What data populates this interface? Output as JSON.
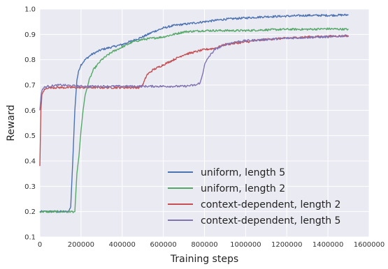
{
  "chart_data": {
    "type": "line",
    "title": "",
    "xlabel": "Training steps",
    "ylabel": "Reward",
    "xlim": [
      0,
      1600000
    ],
    "ylim": [
      0.1,
      1.0
    ],
    "xticks": [
      0,
      200000,
      400000,
      600000,
      800000,
      1000000,
      1200000,
      1400000,
      1600000
    ],
    "yticks": [
      0.1,
      0.2,
      0.3,
      0.4,
      0.5,
      0.6,
      0.7,
      0.8,
      0.9,
      1.0
    ],
    "grid": true,
    "legend_position": "bottom-right",
    "colors": {
      "plot_background": "#EAEAF2",
      "grid": "#ffffff"
    },
    "series": [
      {
        "name": "uniform, length 5",
        "color": "#4C72B0",
        "points": [
          [
            0,
            0.2
          ],
          [
            50000,
            0.2
          ],
          [
            100000,
            0.2
          ],
          [
            140000,
            0.2
          ],
          [
            150000,
            0.22
          ],
          [
            160000,
            0.4
          ],
          [
            170000,
            0.6
          ],
          [
            180000,
            0.72
          ],
          [
            190000,
            0.76
          ],
          [
            200000,
            0.78
          ],
          [
            220000,
            0.8
          ],
          [
            250000,
            0.82
          ],
          [
            300000,
            0.84
          ],
          [
            350000,
            0.85
          ],
          [
            400000,
            0.86
          ],
          [
            450000,
            0.875
          ],
          [
            500000,
            0.89
          ],
          [
            550000,
            0.91
          ],
          [
            600000,
            0.925
          ],
          [
            650000,
            0.935
          ],
          [
            700000,
            0.94
          ],
          [
            750000,
            0.945
          ],
          [
            800000,
            0.95
          ],
          [
            850000,
            0.955
          ],
          [
            900000,
            0.96
          ],
          [
            1000000,
            0.965
          ],
          [
            1100000,
            0.97
          ],
          [
            1200000,
            0.972
          ],
          [
            1300000,
            0.975
          ],
          [
            1400000,
            0.975
          ],
          [
            1500000,
            0.977
          ]
        ]
      },
      {
        "name": "uniform, length 2",
        "color": "#55A868",
        "points": [
          [
            0,
            0.2
          ],
          [
            50000,
            0.2
          ],
          [
            100000,
            0.2
          ],
          [
            150000,
            0.2
          ],
          [
            170000,
            0.2
          ],
          [
            180000,
            0.35
          ],
          [
            190000,
            0.42
          ],
          [
            200000,
            0.52
          ],
          [
            210000,
            0.6
          ],
          [
            220000,
            0.66
          ],
          [
            240000,
            0.72
          ],
          [
            260000,
            0.76
          ],
          [
            280000,
            0.78
          ],
          [
            300000,
            0.8
          ],
          [
            350000,
            0.83
          ],
          [
            400000,
            0.85
          ],
          [
            450000,
            0.87
          ],
          [
            500000,
            0.88
          ],
          [
            550000,
            0.885
          ],
          [
            600000,
            0.89
          ],
          [
            650000,
            0.9
          ],
          [
            700000,
            0.91
          ],
          [
            800000,
            0.915
          ],
          [
            900000,
            0.915
          ],
          [
            1000000,
            0.915
          ],
          [
            1100000,
            0.918
          ],
          [
            1200000,
            0.92
          ],
          [
            1300000,
            0.92
          ],
          [
            1400000,
            0.922
          ],
          [
            1500000,
            0.92
          ]
        ]
      },
      {
        "name": "context-dependent, length 2",
        "color": "#C44E52",
        "points": [
          [
            0,
            0.38
          ],
          [
            5000,
            0.6
          ],
          [
            10000,
            0.66
          ],
          [
            20000,
            0.68
          ],
          [
            40000,
            0.69
          ],
          [
            100000,
            0.69
          ],
          [
            200000,
            0.69
          ],
          [
            300000,
            0.69
          ],
          [
            400000,
            0.69
          ],
          [
            480000,
            0.69
          ],
          [
            500000,
            0.7
          ],
          [
            510000,
            0.72
          ],
          [
            520000,
            0.74
          ],
          [
            550000,
            0.76
          ],
          [
            600000,
            0.78
          ],
          [
            650000,
            0.8
          ],
          [
            700000,
            0.82
          ],
          [
            750000,
            0.83
          ],
          [
            800000,
            0.84
          ],
          [
            850000,
            0.845
          ],
          [
            900000,
            0.86
          ],
          [
            1000000,
            0.87
          ],
          [
            1100000,
            0.88
          ],
          [
            1200000,
            0.885
          ],
          [
            1300000,
            0.89
          ],
          [
            1400000,
            0.892
          ],
          [
            1500000,
            0.895
          ]
        ]
      },
      {
        "name": "context-dependent, length 5",
        "color": "#8172B2",
        "points": [
          [
            0,
            0.6
          ],
          [
            5000,
            0.65
          ],
          [
            10000,
            0.68
          ],
          [
            20000,
            0.69
          ],
          [
            40000,
            0.695
          ],
          [
            100000,
            0.7
          ],
          [
            200000,
            0.695
          ],
          [
            300000,
            0.695
          ],
          [
            400000,
            0.695
          ],
          [
            500000,
            0.695
          ],
          [
            600000,
            0.695
          ],
          [
            700000,
            0.695
          ],
          [
            760000,
            0.7
          ],
          [
            780000,
            0.71
          ],
          [
            790000,
            0.74
          ],
          [
            800000,
            0.78
          ],
          [
            820000,
            0.81
          ],
          [
            850000,
            0.84
          ],
          [
            900000,
            0.86
          ],
          [
            950000,
            0.87
          ],
          [
            1000000,
            0.875
          ],
          [
            1100000,
            0.88
          ],
          [
            1200000,
            0.885
          ],
          [
            1300000,
            0.888
          ],
          [
            1400000,
            0.89
          ],
          [
            1500000,
            0.895
          ]
        ]
      }
    ]
  }
}
